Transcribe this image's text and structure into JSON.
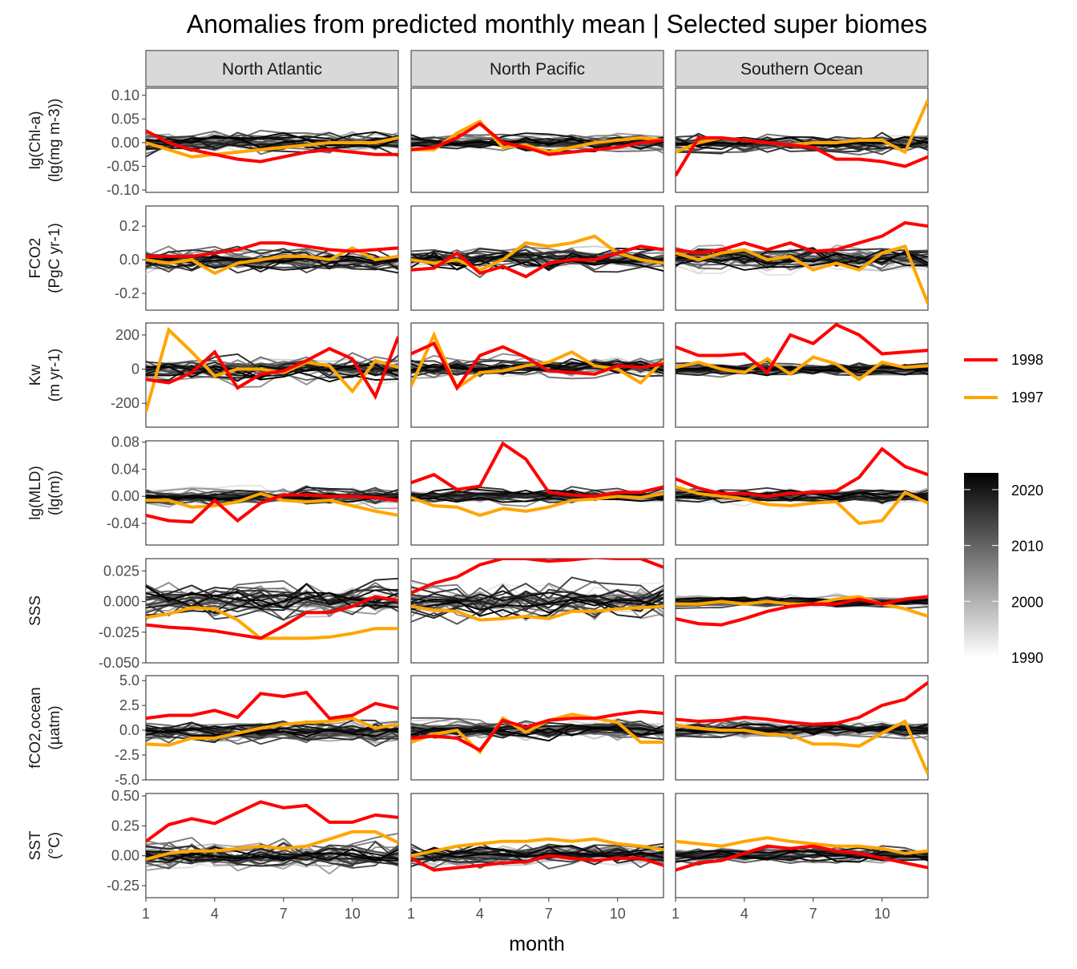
{
  "title": "Anomalies from predicted monthly mean | Selected super biomes",
  "xlabel": "month",
  "colors": {
    "y1998": "#ff0000",
    "y1997": "#ffa500",
    "background_lines": "grayscale"
  },
  "legend": {
    "series": [
      {
        "label": "1998",
        "color": "#ff0000"
      },
      {
        "label": "1997",
        "color": "#ffa500"
      }
    ],
    "colorbar": {
      "labels": [
        "2020",
        "2010",
        "2000",
        "1990"
      ],
      "range": [
        1990,
        2023
      ]
    }
  },
  "chart_data": {
    "type": "line",
    "title": "Anomalies from predicted monthly mean | Selected super biomes",
    "xlabel": "month",
    "x": [
      1,
      2,
      3,
      4,
      5,
      6,
      7,
      8,
      9,
      10,
      11,
      12
    ],
    "xticks": [
      "1",
      "4",
      "7",
      "10"
    ],
    "grid": false,
    "legend_position": "right",
    "columns": [
      "North Atlantic",
      "North Pacific",
      "Southern Ocean"
    ],
    "rows": [
      {
        "label": [
          "lg(Chl-a)",
          "(lg(mg m-3))"
        ],
        "ylim": [
          -0.105,
          0.115
        ],
        "yticks": [
          {
            "v": 0.1,
            "t": "0.10"
          },
          {
            "v": 0.05,
            "t": "0.05"
          },
          {
            "v": 0.0,
            "t": "0.00"
          },
          {
            "v": -0.05,
            "t": "-0.05"
          },
          {
            "v": -0.1,
            "t": "-0.10"
          }
        ],
        "panels": [
          {
            "y1998": [
              0.025,
              0.0,
              -0.015,
              -0.025,
              -0.035,
              -0.04,
              -0.03,
              -0.02,
              -0.015,
              -0.02,
              -0.025,
              -0.025
            ],
            "y1997": [
              0.0,
              -0.015,
              -0.03,
              -0.025,
              -0.02,
              -0.015,
              -0.01,
              -0.005,
              0.0,
              0.0,
              0.0,
              0.01
            ],
            "spread": 0.035
          },
          {
            "y1998": [
              -0.015,
              -0.01,
              0.01,
              0.04,
              0.0,
              -0.01,
              -0.025,
              -0.02,
              -0.015,
              -0.01,
              0.0,
              0.005
            ],
            "y1997": [
              -0.015,
              -0.015,
              0.02,
              0.045,
              -0.01,
              -0.005,
              -0.02,
              -0.01,
              0.0,
              0.005,
              0.01,
              0.005
            ],
            "spread": 0.025
          },
          {
            "y1998": [
              -0.07,
              0.01,
              0.01,
              0.005,
              0.0,
              -0.005,
              -0.01,
              -0.035,
              -0.035,
              -0.04,
              -0.05,
              -0.03
            ],
            "y1997": [
              -0.02,
              0.0,
              0.01,
              0.005,
              0.0,
              -0.005,
              0.0,
              0.0,
              0.005,
              0.005,
              -0.02,
              0.09
            ],
            "spread": 0.03
          }
        ]
      },
      {
        "label": [
          "FCO2",
          "(PgC yr-1)"
        ],
        "ylim": [
          -0.3,
          0.32
        ],
        "yticks": [
          {
            "v": 0.2,
            "t": "0.2"
          },
          {
            "v": 0.0,
            "t": "0.0"
          },
          {
            "v": -0.2,
            "t": "-0.2"
          }
        ],
        "panels": [
          {
            "y1998": [
              0.02,
              0.02,
              0.02,
              0.04,
              0.06,
              0.1,
              0.1,
              0.08,
              0.06,
              0.05,
              0.06,
              0.07
            ],
            "y1997": [
              0.0,
              -0.02,
              0.0,
              -0.08,
              -0.02,
              0.0,
              0.02,
              0.02,
              0.0,
              0.07,
              0.0,
              0.02
            ],
            "spread": 0.1
          },
          {
            "y1998": [
              -0.06,
              -0.05,
              0.04,
              -0.08,
              -0.04,
              -0.1,
              -0.02,
              0.0,
              0.0,
              0.04,
              0.08,
              0.06
            ],
            "y1997": [
              0.0,
              -0.02,
              0.0,
              -0.06,
              0.0,
              0.1,
              0.08,
              0.1,
              0.14,
              0.04,
              0.0,
              -0.02
            ],
            "spread": 0.1
          },
          {
            "y1998": [
              0.06,
              0.04,
              0.06,
              0.1,
              0.06,
              0.1,
              0.05,
              0.06,
              0.1,
              0.14,
              0.22,
              0.2
            ],
            "y1997": [
              0.04,
              0.0,
              0.04,
              0.06,
              0.0,
              0.02,
              -0.06,
              -0.02,
              -0.06,
              0.04,
              0.08,
              -0.26
            ],
            "spread": 0.1
          }
        ]
      },
      {
        "label": [
          "Kw",
          "(m yr-1)"
        ],
        "ylim": [
          -340,
          270
        ],
        "yticks": [
          {
            "v": 200,
            "t": "200"
          },
          {
            "v": 0,
            "t": "0"
          },
          {
            "v": -200,
            "t": "-200"
          }
        ],
        "panels": [
          {
            "y1998": [
              -60,
              -80,
              -20,
              100,
              -110,
              -30,
              -10,
              50,
              120,
              60,
              -160,
              190
            ],
            "y1997": [
              -250,
              230,
              100,
              -40,
              0,
              0,
              -20,
              40,
              20,
              -130,
              50,
              10
            ],
            "spread": 100
          },
          {
            "y1998": [
              90,
              150,
              -110,
              80,
              130,
              70,
              -10,
              -20,
              -30,
              20,
              10,
              30
            ],
            "y1997": [
              -100,
              200,
              -110,
              -20,
              -10,
              20,
              40,
              100,
              20,
              0,
              -80,
              50
            ],
            "spread": 90
          },
          {
            "y1998": [
              130,
              80,
              80,
              90,
              -20,
              200,
              150,
              260,
              200,
              90,
              100,
              110
            ],
            "y1997": [
              10,
              40,
              0,
              -20,
              60,
              -30,
              70,
              30,
              -60,
              40,
              10,
              20
            ],
            "spread": 60
          }
        ]
      },
      {
        "label": [
          "lg(MLD)",
          "(lg(m))"
        ],
        "ylim": [
          -0.072,
          0.082
        ],
        "yticks": [
          {
            "v": 0.08,
            "t": "0.08"
          },
          {
            "v": 0.04,
            "t": "0.04"
          },
          {
            "v": 0.0,
            "t": "0.00"
          },
          {
            "v": -0.04,
            "t": "-0.04"
          }
        ],
        "panels": [
          {
            "y1998": [
              -0.028,
              -0.036,
              -0.038,
              -0.006,
              -0.036,
              -0.01,
              0.002,
              0.002,
              0.0,
              0.0,
              -0.002,
              -0.006
            ],
            "y1997": [
              -0.006,
              -0.006,
              -0.016,
              -0.014,
              -0.008,
              0.004,
              -0.006,
              -0.008,
              -0.006,
              -0.014,
              -0.022,
              -0.028
            ],
            "spread": 0.02
          },
          {
            "y1998": [
              0.02,
              0.032,
              0.01,
              0.015,
              0.078,
              0.055,
              0.006,
              0.002,
              0.0,
              0.006,
              0.006,
              0.014
            ],
            "y1997": [
              -0.002,
              -0.014,
              -0.016,
              -0.028,
              -0.018,
              -0.022,
              -0.016,
              -0.006,
              -0.004,
              0.0,
              -0.002,
              0.004
            ],
            "spread": 0.015
          },
          {
            "y1998": [
              0.026,
              0.012,
              0.004,
              0.004,
              0.0,
              0.004,
              0.006,
              0.008,
              0.028,
              0.07,
              0.044,
              0.032
            ],
            "y1997": [
              0.014,
              0.004,
              0.0,
              -0.004,
              -0.012,
              -0.014,
              -0.01,
              -0.008,
              -0.04,
              -0.036,
              0.006,
              -0.01
            ],
            "spread": 0.015
          }
        ]
      },
      {
        "label": [
          "SSS",
          ""
        ],
        "ylim": [
          -0.05,
          0.035
        ],
        "yticks": [
          {
            "v": 0.025,
            "t": "0.025"
          },
          {
            "v": 0.0,
            "t": "0.000"
          },
          {
            "v": -0.025,
            "t": "-0.025"
          },
          {
            "v": -0.05,
            "t": "-0.050"
          }
        ],
        "panels": [
          {
            "y1998": [
              -0.019,
              -0.021,
              -0.022,
              -0.024,
              -0.027,
              -0.03,
              -0.02,
              -0.009,
              -0.009,
              -0.004,
              0.004,
              0.001
            ],
            "y1997": [
              -0.013,
              -0.01,
              -0.005,
              -0.006,
              -0.015,
              -0.03,
              -0.03,
              -0.03,
              -0.029,
              -0.026,
              -0.022,
              -0.022
            ],
            "spread": 0.02
          },
          {
            "y1998": [
              0.007,
              0.015,
              0.02,
              0.03,
              0.035,
              0.035,
              0.033,
              0.034,
              0.036,
              0.035,
              0.035,
              0.028
            ],
            "y1997": [
              -0.004,
              -0.007,
              -0.008,
              -0.015,
              -0.014,
              -0.012,
              -0.014,
              -0.008,
              -0.008,
              -0.006,
              -0.005,
              -0.004
            ],
            "spread": 0.02
          },
          {
            "y1998": [
              -0.014,
              -0.018,
              -0.019,
              -0.014,
              -0.008,
              -0.004,
              -0.002,
              -0.002,
              0.002,
              -0.002,
              0.002,
              0.004
            ],
            "y1997": [
              -0.002,
              -0.002,
              0.0,
              -0.002,
              0.0,
              -0.002,
              -0.002,
              0.002,
              0.004,
              -0.002,
              -0.006,
              -0.012
            ],
            "spread": 0.007
          }
        ]
      },
      {
        "label": [
          "fCO2,ocean",
          "(µatm)"
        ],
        "ylim": [
          -5.0,
          5.5
        ],
        "yticks": [
          {
            "v": 5.0,
            "t": "5.0"
          },
          {
            "v": 2.5,
            "t": "2.5"
          },
          {
            "v": 0.0,
            "t": "0.0"
          },
          {
            "v": -2.5,
            "t": "-2.5"
          },
          {
            "v": -5.0,
            "t": "-5.0"
          }
        ],
        "panels": [
          {
            "y1998": [
              1.2,
              1.5,
              1.5,
              2.0,
              1.3,
              3.7,
              3.4,
              3.8,
              1.2,
              1.5,
              2.7,
              2.2
            ],
            "y1997": [
              -1.4,
              -1.5,
              -0.8,
              -0.8,
              -0.3,
              0.2,
              0.6,
              0.8,
              0.9,
              1.2,
              0.2,
              0.6
            ],
            "spread": 1.6
          },
          {
            "y1998": [
              -0.8,
              -0.6,
              -0.8,
              -2.0,
              1.0,
              0.3,
              1.0,
              1.2,
              1.2,
              1.6,
              1.9,
              1.7
            ],
            "y1997": [
              -1.2,
              -0.4,
              0.0,
              -2.2,
              1.2,
              -0.2,
              1.0,
              1.6,
              1.2,
              0.8,
              -1.2,
              -1.2
            ],
            "spread": 1.5
          },
          {
            "y1998": [
              1.1,
              0.9,
              1.0,
              1.3,
              1.1,
              0.8,
              0.6,
              0.7,
              1.3,
              2.5,
              3.1,
              4.8
            ],
            "y1997": [
              0.5,
              0.2,
              0.0,
              0.0,
              -0.4,
              -0.5,
              -1.4,
              -1.4,
              -1.6,
              -0.3,
              0.9,
              -4.4
            ],
            "spread": 1.2
          }
        ]
      },
      {
        "label": [
          "SST",
          "(°C)"
        ],
        "ylim": [
          -0.35,
          0.52
        ],
        "yticks": [
          {
            "v": 0.5,
            "t": "0.50"
          },
          {
            "v": 0.25,
            "t": "0.25"
          },
          {
            "v": 0.0,
            "t": "0.00"
          },
          {
            "v": -0.25,
            "t": "-0.25"
          }
        ],
        "panels": [
          {
            "y1998": [
              0.12,
              0.26,
              0.31,
              0.27,
              0.36,
              0.45,
              0.4,
              0.42,
              0.28,
              0.28,
              0.34,
              0.32
            ],
            "y1997": [
              -0.03,
              0.02,
              0.04,
              0.04,
              0.06,
              0.08,
              0.06,
              0.08,
              0.14,
              0.2,
              0.2,
              0.11
            ],
            "spread": 0.18
          },
          {
            "y1998": [
              -0.02,
              -0.12,
              -0.1,
              -0.08,
              -0.06,
              -0.05,
              0.0,
              -0.02,
              -0.04,
              -0.02,
              -0.02,
              -0.08
            ],
            "y1997": [
              0.0,
              0.04,
              0.08,
              0.1,
              0.12,
              0.12,
              0.14,
              0.12,
              0.14,
              0.1,
              0.08,
              0.05
            ],
            "spread": 0.13
          },
          {
            "y1998": [
              -0.12,
              -0.06,
              -0.04,
              0.02,
              0.08,
              0.06,
              0.08,
              0.04,
              0.02,
              -0.02,
              -0.06,
              -0.1
            ],
            "y1997": [
              0.12,
              0.1,
              0.08,
              0.12,
              0.15,
              0.12,
              0.1,
              0.08,
              0.08,
              0.06,
              0.02,
              0.04
            ],
            "spread": 0.09
          }
        ]
      }
    ]
  }
}
